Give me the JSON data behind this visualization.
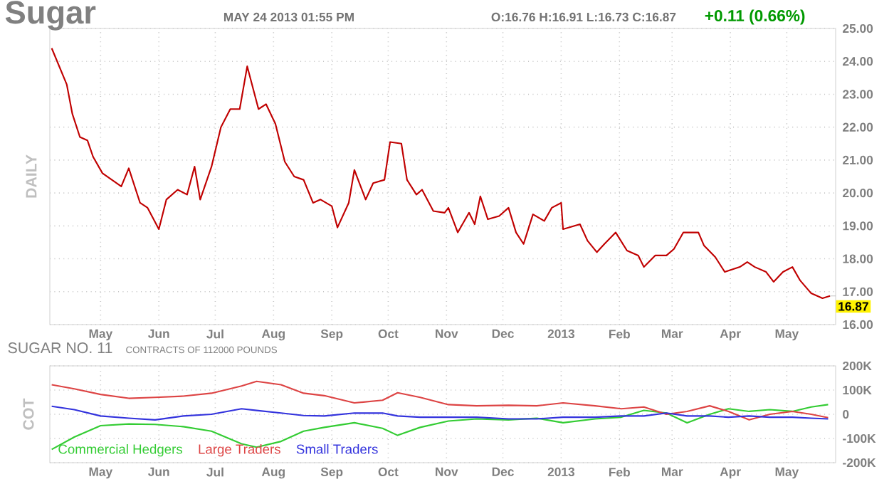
{
  "chart_data": [
    {
      "type": "line",
      "title": "Sugar",
      "ylabel": "DAILY",
      "annotations": [
        "MAY 24 2013 01:55 PM",
        "O:16.76    H:16.91    L:16.73    C:16.87",
        "+0.11 (0.66%)",
        {
          "text": "16.87",
          "x": "2013-05-24",
          "y": 16.87
        }
      ],
      "x": [
        "2012-04-05",
        "2012-04-09",
        "2012-04-13",
        "2012-04-16",
        "2012-04-20",
        "2012-04-24",
        "2012-04-27",
        "2012-05-02",
        "2012-05-07",
        "2012-05-12",
        "2012-05-16",
        "2012-05-22",
        "2012-05-26",
        "2012-06-01",
        "2012-06-05",
        "2012-06-11",
        "2012-06-16",
        "2012-06-20",
        "2012-06-23",
        "2012-06-29",
        "2012-07-04",
        "2012-07-09",
        "2012-07-14",
        "2012-07-18",
        "2012-07-24",
        "2012-07-28",
        "2012-08-02",
        "2012-08-07",
        "2012-08-12",
        "2012-08-17",
        "2012-08-22",
        "2012-08-26",
        "2012-09-01",
        "2012-09-04",
        "2012-09-10",
        "2012-09-13",
        "2012-09-19",
        "2012-09-23",
        "2012-09-29",
        "2012-10-02",
        "2012-10-08",
        "2012-10-11",
        "2012-10-16",
        "2012-10-19",
        "2012-10-25",
        "2012-10-31",
        "2012-11-02",
        "2012-11-07",
        "2012-11-13",
        "2012-11-16",
        "2012-11-19",
        "2012-11-23",
        "2012-11-29",
        "2012-12-04",
        "2012-12-08",
        "2012-12-12",
        "2012-12-17",
        "2012-12-23",
        "2012-12-27",
        "2013-01-01",
        "2013-01-02",
        "2013-01-11",
        "2013-01-15",
        "2013-01-20",
        "2013-01-24",
        "2013-01-30",
        "2013-02-05",
        "2013-02-11",
        "2013-02-14",
        "2013-02-20",
        "2013-02-26",
        "2013-03-02",
        "2013-03-07",
        "2013-03-15",
        "2013-03-18",
        "2013-03-24",
        "2013-03-29",
        "2013-04-06",
        "2013-04-10",
        "2013-04-14",
        "2013-04-20",
        "2013-04-24",
        "2013-04-29",
        "2013-05-04",
        "2013-05-08",
        "2013-05-14",
        "2013-05-20",
        "2013-05-24"
      ],
      "series": [
        {
          "color": "#c00000",
          "values": [
            24.4,
            23.85,
            23.3,
            22.4,
            21.7,
            21.6,
            21.1,
            20.6,
            20.4,
            20.2,
            20.75,
            19.7,
            19.55,
            18.9,
            19.8,
            20.1,
            19.95,
            20.8,
            19.8,
            20.8,
            22.0,
            22.55,
            22.55,
            23.85,
            22.55,
            22.7,
            22.1,
            20.95,
            20.5,
            20.4,
            19.7,
            19.8,
            19.6,
            18.95,
            19.7,
            20.7,
            19.8,
            20.3,
            20.4,
            21.55,
            21.5,
            20.4,
            19.95,
            20.1,
            19.45,
            19.4,
            19.55,
            18.8,
            19.4,
            19.05,
            19.9,
            19.2,
            19.3,
            19.55,
            18.8,
            18.45,
            19.35,
            19.15,
            19.55,
            19.7,
            18.9,
            19.05,
            18.55,
            18.2,
            18.45,
            18.8,
            18.25,
            18.1,
            17.75,
            18.1,
            18.1,
            18.3,
            18.8,
            18.8,
            18.4,
            18.05,
            17.6,
            17.75,
            17.9,
            17.75,
            17.6,
            17.3,
            17.6,
            17.75,
            17.35,
            16.95,
            16.8,
            16.87
          ]
        }
      ],
      "xlim": [
        "2012-04-04",
        "2013-05-27"
      ],
      "xticks": [
        {
          "value": "2012-05-01",
          "label": "May"
        },
        {
          "value": "2012-06-01",
          "label": "Jun"
        },
        {
          "value": "2012-07-01",
          "label": "Jul"
        },
        {
          "value": "2012-08-01",
          "label": "Aug"
        },
        {
          "value": "2012-09-01",
          "label": "Sep"
        },
        {
          "value": "2012-10-01",
          "label": "Oct"
        },
        {
          "value": "2012-11-01",
          "label": "Nov"
        },
        {
          "value": "2012-12-01",
          "label": "Dec"
        },
        {
          "value": "2013-01-01",
          "label": "2013"
        },
        {
          "value": "2013-02-01",
          "label": "Feb"
        },
        {
          "value": "2013-03-01",
          "label": "Mar"
        },
        {
          "value": "2013-04-01",
          "label": "Apr"
        },
        {
          "value": "2013-05-01",
          "label": "May"
        }
      ],
      "ylim": [
        16,
        25
      ],
      "yticks": [
        {
          "value": 16,
          "label": "16.00"
        },
        {
          "value": 17,
          "label": "17.00"
        },
        {
          "value": 18,
          "label": "18.00"
        },
        {
          "value": 19,
          "label": "19.00"
        },
        {
          "value": 20,
          "label": "20.00"
        },
        {
          "value": 21,
          "label": "21.00"
        },
        {
          "value": 22,
          "label": "22.00"
        },
        {
          "value": 23,
          "label": "23.00"
        },
        {
          "value": 24,
          "label": "24.00"
        },
        {
          "value": 25,
          "label": "25.00"
        }
      ],
      "grid": true
    },
    {
      "type": "line",
      "title": "SUGAR NO. 11",
      "subtitle": "CONTRACTS OF 112000 POUNDS",
      "ylabel": "COT",
      "x": [
        "2012-04-05",
        "2012-04-17",
        "2012-05-01",
        "2012-05-16",
        "2012-05-30",
        "2012-06-14",
        "2012-06-29",
        "2012-07-15",
        "2012-07-23",
        "2012-08-05",
        "2012-08-17",
        "2012-08-28",
        "2012-09-13",
        "2012-09-28",
        "2012-10-06",
        "2012-10-18",
        "2012-11-02",
        "2012-11-17",
        "2012-12-04",
        "2012-12-19",
        "2013-01-02",
        "2013-01-19",
        "2013-02-02",
        "2013-02-14",
        "2013-02-26",
        "2013-03-09",
        "2013-03-21",
        "2013-03-31",
        "2013-04-11",
        "2013-04-22",
        "2013-05-04",
        "2013-05-14",
        "2013-05-23"
      ],
      "series": [
        {
          "name": "Commercial Hedgers",
          "color": "#33cc33",
          "values": [
            -145,
            -94,
            -47,
            -40,
            -42,
            -51,
            -70,
            -122,
            -136,
            -112,
            -70,
            -54,
            -35,
            -58,
            -87,
            -54,
            -28,
            -19,
            -23,
            -16,
            -35,
            -19,
            -12,
            16,
            5,
            -35,
            0,
            23,
            12,
            19,
            12,
            30,
            40
          ]
        },
        {
          "name": "Large Traders",
          "color": "#dd4444",
          "values": [
            122,
            105,
            82,
            66,
            70,
            75,
            87,
            117,
            136,
            122,
            87,
            77,
            47,
            58,
            89,
            70,
            40,
            35,
            37,
            35,
            47,
            35,
            23,
            30,
            0,
            12,
            35,
            12,
            -23,
            0,
            12,
            0,
            -14
          ]
        },
        {
          "name": "Small Traders",
          "color": "#3333dd",
          "values": [
            33,
            19,
            -7,
            -16,
            -23,
            -7,
            0,
            23,
            16,
            5,
            -5,
            -7,
            5,
            5,
            -7,
            -12,
            -12,
            -12,
            -19,
            -19,
            -12,
            -12,
            -7,
            -7,
            5,
            -7,
            -7,
            -12,
            -7,
            -12,
            -12,
            -16,
            -19
          ]
        }
      ],
      "xlim": [
        "2012-04-04",
        "2013-05-27"
      ],
      "xticks": [
        {
          "value": "2012-05-01",
          "label": "May"
        },
        {
          "value": "2012-06-01",
          "label": "Jun"
        },
        {
          "value": "2012-07-01",
          "label": "Jul"
        },
        {
          "value": "2012-08-01",
          "label": "Aug"
        },
        {
          "value": "2012-09-01",
          "label": "Sep"
        },
        {
          "value": "2012-10-01",
          "label": "Oct"
        },
        {
          "value": "2012-11-01",
          "label": "Nov"
        },
        {
          "value": "2012-12-01",
          "label": "Dec"
        },
        {
          "value": "2013-01-01",
          "label": "2013"
        },
        {
          "value": "2013-02-01",
          "label": "Feb"
        },
        {
          "value": "2013-03-01",
          "label": "Mar"
        },
        {
          "value": "2013-04-01",
          "label": "Apr"
        },
        {
          "value": "2013-05-01",
          "label": "May"
        }
      ],
      "ylim": [
        -200,
        200
      ],
      "yticks": [
        {
          "value": -200,
          "label": "-200K"
        },
        {
          "value": -100,
          "label": "-100K"
        },
        0,
        {
          "value": 100,
          "label": "100K"
        },
        {
          "value": 200,
          "label": "200K"
        }
      ],
      "grid": true,
      "legend": "bottom left"
    }
  ]
}
